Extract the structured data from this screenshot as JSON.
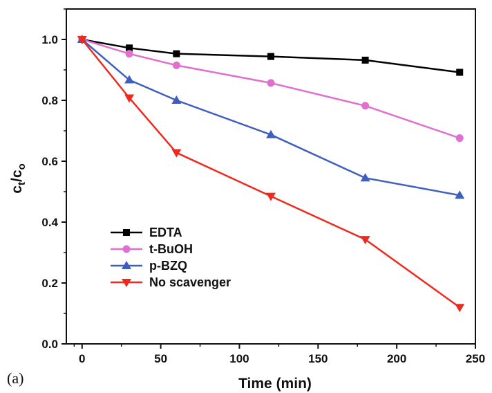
{
  "panel_label": "(a)",
  "chart_data": {
    "type": "line",
    "title": "",
    "xlabel": "Time (min)",
    "ylabel_main": "c",
    "ylabel_sub1": "t",
    "ylabel_slash": "/c",
    "ylabel_sub2": "o",
    "xlim": [
      -10,
      250
    ],
    "ylim": [
      0,
      1.1
    ],
    "xticks": [
      0,
      50,
      100,
      150,
      200,
      250
    ],
    "yticks": [
      0.0,
      0.2,
      0.4,
      0.6,
      0.8,
      1.0
    ],
    "xtick_labels": [
      "0",
      "50",
      "100",
      "150",
      "200",
      "250"
    ],
    "ytick_labels": [
      "0.0",
      "0.2",
      "0.4",
      "0.6",
      "0.8",
      "1.0"
    ],
    "grid": false,
    "legend_position": "lower-left",
    "x": [
      0,
      30,
      60,
      120,
      180,
      240
    ],
    "series": [
      {
        "name": "EDTA",
        "color": "#000000",
        "marker": "square",
        "values": [
          1.0,
          0.972,
          0.953,
          0.944,
          0.932,
          0.892
        ]
      },
      {
        "name": "t-BuOH",
        "color": "#e070d0",
        "marker": "circle",
        "values": [
          1.0,
          0.953,
          0.915,
          0.857,
          0.782,
          0.676
        ]
      },
      {
        "name": "p-BZQ",
        "color": "#3f5fbf",
        "marker": "triangle-up",
        "values": [
          1.0,
          0.867,
          0.8,
          0.687,
          0.545,
          0.488
        ]
      },
      {
        "name": "No scavenger",
        "color": "#ee2a1f",
        "marker": "triangle-down",
        "values": [
          1.0,
          0.808,
          0.628,
          0.485,
          0.343,
          0.12
        ]
      }
    ]
  }
}
